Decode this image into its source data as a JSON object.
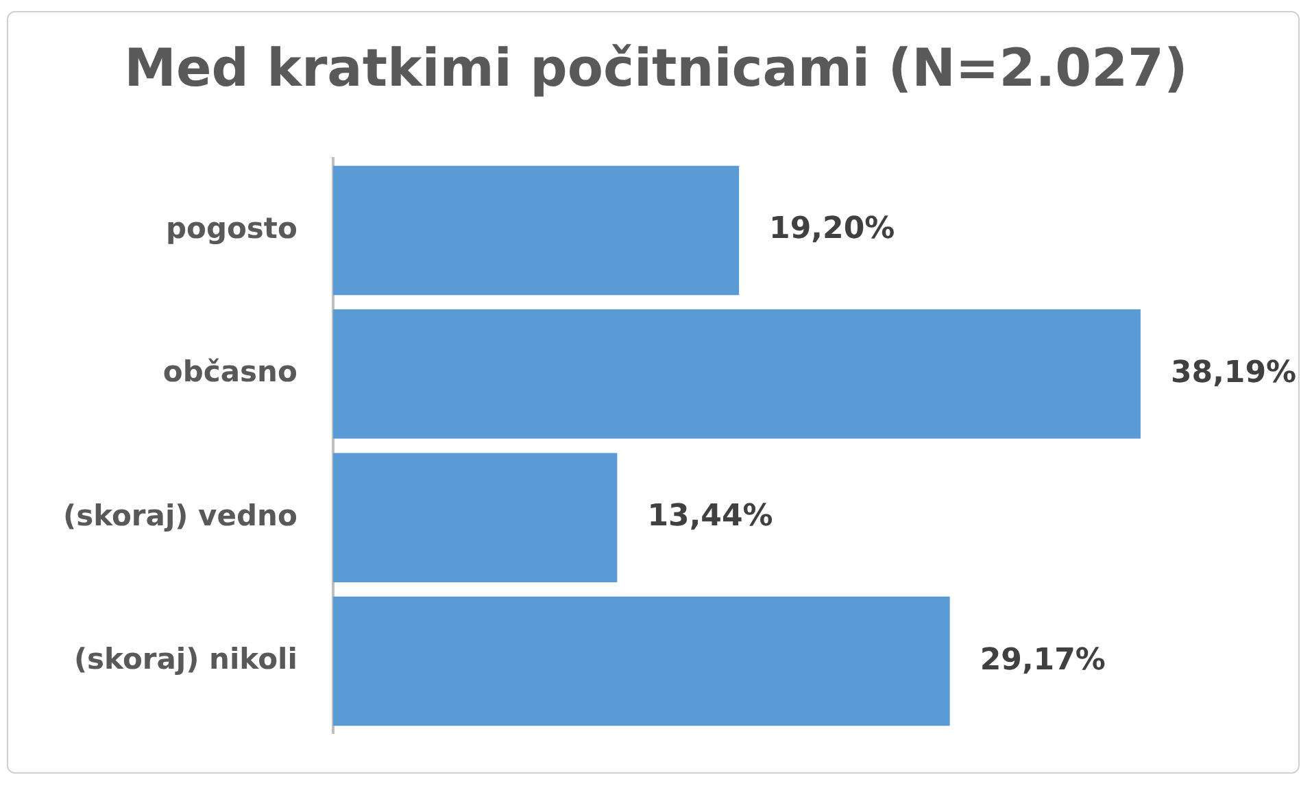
{
  "chart_data": {
    "type": "bar",
    "orientation": "horizontal",
    "title": "Med kratkimi počitnicami (N=2.027)",
    "categories": [
      "pogosto",
      "občasno",
      "(skoraj) vedno",
      "(skoraj) nikoli"
    ],
    "values": [
      19.2,
      38.19,
      13.44,
      29.17
    ],
    "value_labels": [
      "19,20%",
      "38,19%",
      "13,44%",
      "29,17%"
    ],
    "color": "#5b9bd5",
    "legend": false,
    "tick_labels": "y"
  }
}
